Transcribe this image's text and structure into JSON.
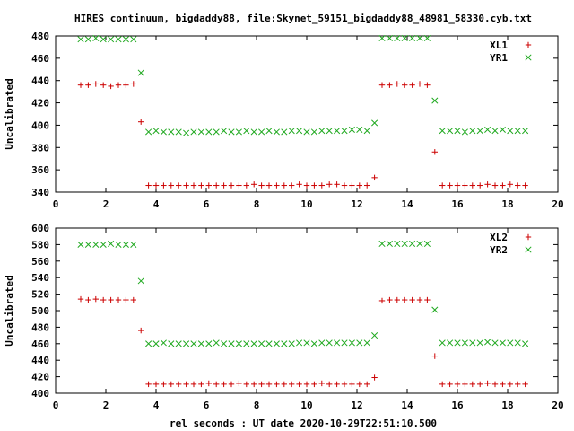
{
  "title": "HIRES continuum, bigdaddy88, file:Skynet_59151_bigdaddy88_48981_58330.cyb.txt",
  "xlabel": "rel seconds : UT date 2020-10-29T22:51:10.500",
  "colors": {
    "plus": "#cc0000",
    "cross": "#1ea81e",
    "axis": "#000000"
  },
  "chart_data": [
    {
      "type": "scatter",
      "ylabel": "Uncalibrated",
      "xlim": [
        0,
        20
      ],
      "ylim": [
        340,
        480
      ],
      "xticks": [
        0,
        2,
        4,
        6,
        8,
        10,
        12,
        14,
        16,
        18,
        20
      ],
      "yticks": [
        340,
        360,
        380,
        400,
        420,
        440,
        460,
        480
      ],
      "legend_position": "top-right",
      "series": [
        {
          "name": "XL1",
          "marker": "plus",
          "color": "#cc0000",
          "points": [
            [
              1.0,
              436
            ],
            [
              1.3,
              436
            ],
            [
              1.6,
              437
            ],
            [
              1.9,
              436
            ],
            [
              2.2,
              435
            ],
            [
              2.5,
              436
            ],
            [
              2.8,
              436
            ],
            [
              3.1,
              437
            ],
            [
              3.4,
              403
            ],
            [
              3.7,
              346
            ],
            [
              4.0,
              346
            ],
            [
              4.3,
              346
            ],
            [
              4.6,
              346
            ],
            [
              4.9,
              346
            ],
            [
              5.2,
              346
            ],
            [
              5.5,
              346
            ],
            [
              5.8,
              346
            ],
            [
              6.1,
              346
            ],
            [
              6.4,
              346
            ],
            [
              6.7,
              346
            ],
            [
              7.0,
              346
            ],
            [
              7.3,
              346
            ],
            [
              7.6,
              346
            ],
            [
              7.9,
              347
            ],
            [
              8.2,
              346
            ],
            [
              8.5,
              346
            ],
            [
              8.8,
              346
            ],
            [
              9.1,
              346
            ],
            [
              9.4,
              346
            ],
            [
              9.7,
              347
            ],
            [
              10.0,
              346
            ],
            [
              10.3,
              346
            ],
            [
              10.6,
              346
            ],
            [
              10.9,
              347
            ],
            [
              11.2,
              347
            ],
            [
              11.5,
              346
            ],
            [
              11.8,
              346
            ],
            [
              12.1,
              346
            ],
            [
              12.4,
              346
            ],
            [
              12.7,
              353
            ],
            [
              13.0,
              436
            ],
            [
              13.3,
              436
            ],
            [
              13.6,
              437
            ],
            [
              13.9,
              436
            ],
            [
              14.2,
              436
            ],
            [
              14.5,
              437
            ],
            [
              14.8,
              436
            ],
            [
              15.1,
              376
            ],
            [
              15.4,
              346
            ],
            [
              15.7,
              346
            ],
            [
              16.0,
              346
            ],
            [
              16.3,
              346
            ],
            [
              16.6,
              346
            ],
            [
              16.9,
              346
            ],
            [
              17.2,
              347
            ],
            [
              17.5,
              346
            ],
            [
              17.8,
              346
            ],
            [
              18.1,
              347
            ],
            [
              18.4,
              346
            ],
            [
              18.7,
              346
            ]
          ]
        },
        {
          "name": "YR1",
          "marker": "cross",
          "color": "#1ea81e",
          "points": [
            [
              1.0,
              477
            ],
            [
              1.3,
              477
            ],
            [
              1.6,
              478
            ],
            [
              1.9,
              477
            ],
            [
              2.2,
              477
            ],
            [
              2.5,
              477
            ],
            [
              2.8,
              477
            ],
            [
              3.1,
              477
            ],
            [
              3.4,
              447
            ],
            [
              3.7,
              394
            ],
            [
              4.0,
              395
            ],
            [
              4.3,
              394
            ],
            [
              4.6,
              394
            ],
            [
              4.9,
              394
            ],
            [
              5.2,
              393
            ],
            [
              5.5,
              394
            ],
            [
              5.8,
              394
            ],
            [
              6.1,
              394
            ],
            [
              6.4,
              394
            ],
            [
              6.7,
              395
            ],
            [
              7.0,
              394
            ],
            [
              7.3,
              394
            ],
            [
              7.6,
              395
            ],
            [
              7.9,
              394
            ],
            [
              8.2,
              394
            ],
            [
              8.5,
              395
            ],
            [
              8.8,
              394
            ],
            [
              9.1,
              394
            ],
            [
              9.4,
              395
            ],
            [
              9.7,
              395
            ],
            [
              10.0,
              394
            ],
            [
              10.3,
              394
            ],
            [
              10.6,
              395
            ],
            [
              10.9,
              395
            ],
            [
              11.2,
              395
            ],
            [
              11.5,
              395
            ],
            [
              11.8,
              396
            ],
            [
              12.1,
              396
            ],
            [
              12.4,
              395
            ],
            [
              12.7,
              402
            ],
            [
              13.0,
              478
            ],
            [
              13.3,
              478
            ],
            [
              13.6,
              478
            ],
            [
              13.9,
              478
            ],
            [
              14.2,
              478
            ],
            [
              14.5,
              478
            ],
            [
              14.8,
              478
            ],
            [
              15.1,
              422
            ],
            [
              15.4,
              395
            ],
            [
              15.7,
              395
            ],
            [
              16.0,
              395
            ],
            [
              16.3,
              394
            ],
            [
              16.6,
              395
            ],
            [
              16.9,
              395
            ],
            [
              17.2,
              396
            ],
            [
              17.5,
              395
            ],
            [
              17.8,
              396
            ],
            [
              18.1,
              395
            ],
            [
              18.4,
              395
            ],
            [
              18.7,
              395
            ]
          ]
        }
      ]
    },
    {
      "type": "scatter",
      "ylabel": "Uncalibrated",
      "xlabel": "rel seconds : UT date 2020-10-29T22:51:10.500",
      "xlim": [
        0,
        20
      ],
      "ylim": [
        400,
        600
      ],
      "xticks": [
        0,
        2,
        4,
        6,
        8,
        10,
        12,
        14,
        16,
        18,
        20
      ],
      "yticks": [
        400,
        420,
        440,
        460,
        480,
        500,
        520,
        540,
        560,
        580,
        600
      ],
      "legend_position": "top-right",
      "series": [
        {
          "name": "XL2",
          "marker": "plus",
          "color": "#cc0000",
          "points": [
            [
              1.0,
              514
            ],
            [
              1.3,
              513
            ],
            [
              1.6,
              514
            ],
            [
              1.9,
              513
            ],
            [
              2.2,
              513
            ],
            [
              2.5,
              513
            ],
            [
              2.8,
              513
            ],
            [
              3.1,
              513
            ],
            [
              3.4,
              476
            ],
            [
              3.7,
              411
            ],
            [
              4.0,
              411
            ],
            [
              4.3,
              411
            ],
            [
              4.6,
              411
            ],
            [
              4.9,
              411
            ],
            [
              5.2,
              411
            ],
            [
              5.5,
              411
            ],
            [
              5.8,
              411
            ],
            [
              6.1,
              412
            ],
            [
              6.4,
              411
            ],
            [
              6.7,
              411
            ],
            [
              7.0,
              411
            ],
            [
              7.3,
              412
            ],
            [
              7.6,
              411
            ],
            [
              7.9,
              411
            ],
            [
              8.2,
              411
            ],
            [
              8.5,
              411
            ],
            [
              8.8,
              411
            ],
            [
              9.1,
              411
            ],
            [
              9.4,
              411
            ],
            [
              9.7,
              411
            ],
            [
              10.0,
              411
            ],
            [
              10.3,
              411
            ],
            [
              10.6,
              412
            ],
            [
              10.9,
              411
            ],
            [
              11.2,
              411
            ],
            [
              11.5,
              411
            ],
            [
              11.8,
              411
            ],
            [
              12.1,
              411
            ],
            [
              12.4,
              411
            ],
            [
              12.7,
              419
            ],
            [
              13.0,
              512
            ],
            [
              13.3,
              513
            ],
            [
              13.6,
              513
            ],
            [
              13.9,
              513
            ],
            [
              14.2,
              513
            ],
            [
              14.5,
              513
            ],
            [
              14.8,
              513
            ],
            [
              15.1,
              445
            ],
            [
              15.4,
              411
            ],
            [
              15.7,
              411
            ],
            [
              16.0,
              411
            ],
            [
              16.3,
              411
            ],
            [
              16.6,
              411
            ],
            [
              16.9,
              411
            ],
            [
              17.2,
              412
            ],
            [
              17.5,
              411
            ],
            [
              17.8,
              411
            ],
            [
              18.1,
              411
            ],
            [
              18.4,
              411
            ],
            [
              18.7,
              411
            ]
          ]
        },
        {
          "name": "YR2",
          "marker": "cross",
          "color": "#1ea81e",
          "points": [
            [
              1.0,
              580
            ],
            [
              1.3,
              580
            ],
            [
              1.6,
              580
            ],
            [
              1.9,
              580
            ],
            [
              2.2,
              581
            ],
            [
              2.5,
              580
            ],
            [
              2.8,
              580
            ],
            [
              3.1,
              580
            ],
            [
              3.4,
              536
            ],
            [
              3.7,
              460
            ],
            [
              4.0,
              460
            ],
            [
              4.3,
              461
            ],
            [
              4.6,
              460
            ],
            [
              4.9,
              460
            ],
            [
              5.2,
              460
            ],
            [
              5.5,
              460
            ],
            [
              5.8,
              460
            ],
            [
              6.1,
              460
            ],
            [
              6.4,
              461
            ],
            [
              6.7,
              460
            ],
            [
              7.0,
              460
            ],
            [
              7.3,
              460
            ],
            [
              7.6,
              460
            ],
            [
              7.9,
              460
            ],
            [
              8.2,
              460
            ],
            [
              8.5,
              460
            ],
            [
              8.8,
              460
            ],
            [
              9.1,
              460
            ],
            [
              9.4,
              460
            ],
            [
              9.7,
              461
            ],
            [
              10.0,
              461
            ],
            [
              10.3,
              460
            ],
            [
              10.6,
              461
            ],
            [
              10.9,
              461
            ],
            [
              11.2,
              461
            ],
            [
              11.5,
              461
            ],
            [
              11.8,
              461
            ],
            [
              12.1,
              461
            ],
            [
              12.4,
              461
            ],
            [
              12.7,
              470
            ],
            [
              13.0,
              581
            ],
            [
              13.3,
              581
            ],
            [
              13.6,
              581
            ],
            [
              13.9,
              581
            ],
            [
              14.2,
              581
            ],
            [
              14.5,
              581
            ],
            [
              14.8,
              581
            ],
            [
              15.1,
              501
            ],
            [
              15.4,
              461
            ],
            [
              15.7,
              461
            ],
            [
              16.0,
              461
            ],
            [
              16.3,
              461
            ],
            [
              16.6,
              461
            ],
            [
              16.9,
              461
            ],
            [
              17.2,
              462
            ],
            [
              17.5,
              461
            ],
            [
              17.8,
              461
            ],
            [
              18.1,
              461
            ],
            [
              18.4,
              461
            ],
            [
              18.7,
              460
            ]
          ]
        }
      ]
    }
  ]
}
